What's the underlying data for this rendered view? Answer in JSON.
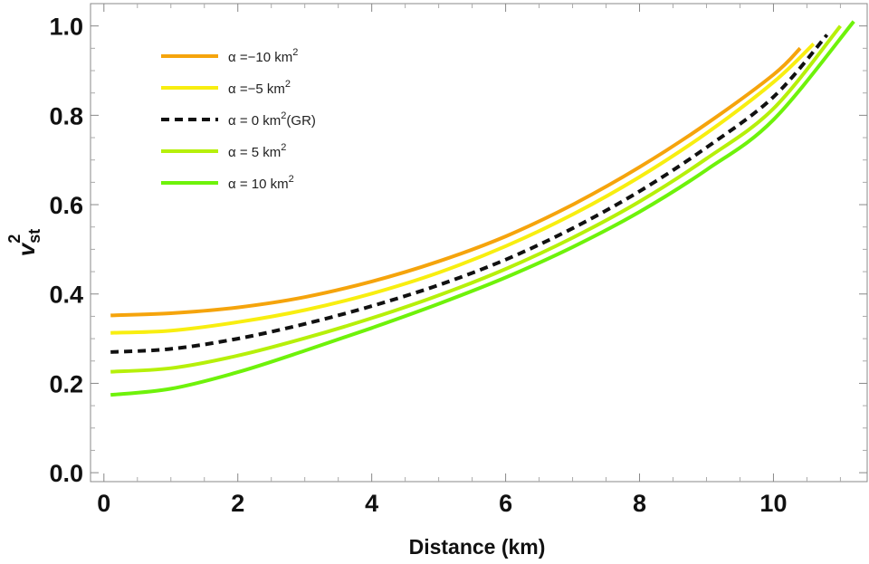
{
  "chart_data": {
    "type": "line",
    "title": "",
    "xlabel": "Distance (km)",
    "ylabel_base": "v",
    "ylabel_sub": "st",
    "ylabel_sup": "2",
    "xlim": [
      -0.2,
      11.4
    ],
    "ylim": [
      -0.02,
      1.05
    ],
    "xticks": [
      0,
      2,
      4,
      6,
      8,
      10
    ],
    "yticks": [
      0.0,
      0.2,
      0.4,
      0.6,
      0.8,
      1.0
    ],
    "xtick_labels": [
      "0",
      "2",
      "4",
      "6",
      "8",
      "10"
    ],
    "ytick_labels": [
      "0.0",
      "0.2",
      "0.4",
      "0.6",
      "0.8",
      "1.0"
    ],
    "legend_position": "top-left",
    "series": [
      {
        "name": "α =−10 km",
        "name_sup": "2",
        "name_suffix": "",
        "color": "#f5a40c",
        "dashed": false,
        "x": [
          0.1,
          1,
          2,
          3,
          4,
          5,
          6,
          7,
          8,
          9,
          10,
          10.4
        ],
        "y": [
          0.352,
          0.357,
          0.37,
          0.393,
          0.428,
          0.473,
          0.529,
          0.6,
          0.684,
          0.781,
          0.891,
          0.95
        ]
      },
      {
        "name": "α =−5 km",
        "name_sup": "2",
        "name_suffix": "",
        "color": "#f8ee10",
        "dashed": false,
        "x": [
          0.1,
          1,
          2,
          3,
          4,
          5,
          6,
          7,
          8,
          9,
          10,
          10.6
        ],
        "y": [
          0.313,
          0.318,
          0.337,
          0.364,
          0.401,
          0.448,
          0.507,
          0.578,
          0.662,
          0.76,
          0.874,
          0.96
        ]
      },
      {
        "name": "α = 0 km",
        "name_sup": "2",
        "name_suffix": "(GR)",
        "color": "#111111",
        "dashed": true,
        "x": [
          0.1,
          1,
          2,
          3,
          4,
          5,
          6,
          7,
          8,
          9,
          10,
          10.8
        ],
        "y": [
          0.27,
          0.277,
          0.3,
          0.333,
          0.373,
          0.42,
          0.477,
          0.547,
          0.63,
          0.728,
          0.841,
          0.98
        ]
      },
      {
        "name": "α = 5 km",
        "name_sup": "2",
        "name_suffix": "",
        "color": "#b6f00a",
        "dashed": false,
        "x": [
          0.1,
          1,
          2,
          3,
          4,
          5,
          6,
          7,
          8,
          9,
          10,
          11.0
        ],
        "y": [
          0.226,
          0.234,
          0.262,
          0.301,
          0.346,
          0.397,
          0.456,
          0.526,
          0.607,
          0.703,
          0.815,
          1.0
        ]
      },
      {
        "name": "α = 10 km",
        "name_sup": "2",
        "name_suffix": "",
        "color": "#6ef20a",
        "dashed": false,
        "x": [
          0.1,
          1,
          2,
          3,
          4,
          5,
          6,
          7,
          8,
          9,
          10,
          11.2
        ],
        "y": [
          0.174,
          0.188,
          0.225,
          0.273,
          0.324,
          0.378,
          0.437,
          0.505,
          0.584,
          0.678,
          0.79,
          1.01
        ]
      }
    ]
  }
}
